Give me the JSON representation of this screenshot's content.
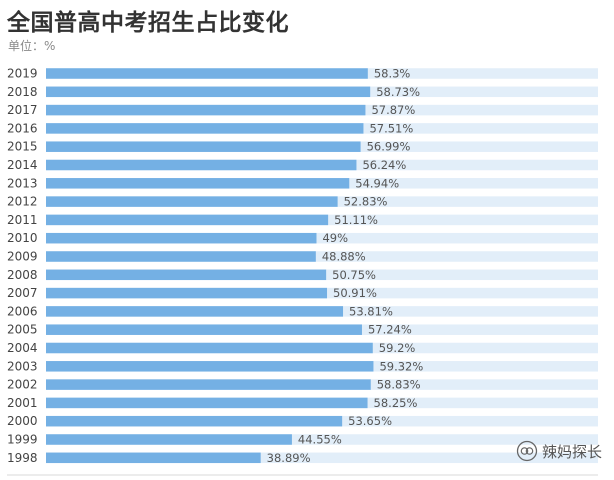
{
  "title": "全国普高中考招生占比变化",
  "unit": "单位：%",
  "watermark": "辣妈探长",
  "colors": {
    "bar": "#74b0e4",
    "track": "#e2eef9",
    "label": "#555555",
    "year": "#444444"
  },
  "chart_data": {
    "type": "bar",
    "orientation": "horizontal",
    "categories": [
      "2019",
      "2018",
      "2017",
      "2016",
      "2015",
      "2014",
      "2013",
      "2012",
      "2011",
      "2010",
      "2009",
      "2008",
      "2007",
      "2006",
      "2005",
      "2004",
      "2003",
      "2002",
      "2001",
      "2000",
      "1999",
      "1998"
    ],
    "values": [
      58.3,
      58.73,
      57.87,
      57.51,
      56.99,
      56.24,
      54.94,
      52.83,
      51.11,
      49,
      48.88,
      50.75,
      50.91,
      53.81,
      57.24,
      59.2,
      59.32,
      58.83,
      58.25,
      53.65,
      44.55,
      38.89
    ],
    "value_labels": [
      "58.3%",
      "58.73%",
      "57.87%",
      "57.51%",
      "56.99%",
      "56.24%",
      "54.94%",
      "52.83%",
      "51.11%",
      "49%",
      "48.88%",
      "50.75%",
      "50.91%",
      "53.81%",
      "57.24%",
      "59.2%",
      "59.32%",
      "58.83%",
      "58.25%",
      "53.65%",
      "44.55%",
      "38.89%"
    ],
    "title": "全国普高中考招生占比变化",
    "xlim": [
      0,
      100
    ],
    "grid": false,
    "legend": "none"
  }
}
